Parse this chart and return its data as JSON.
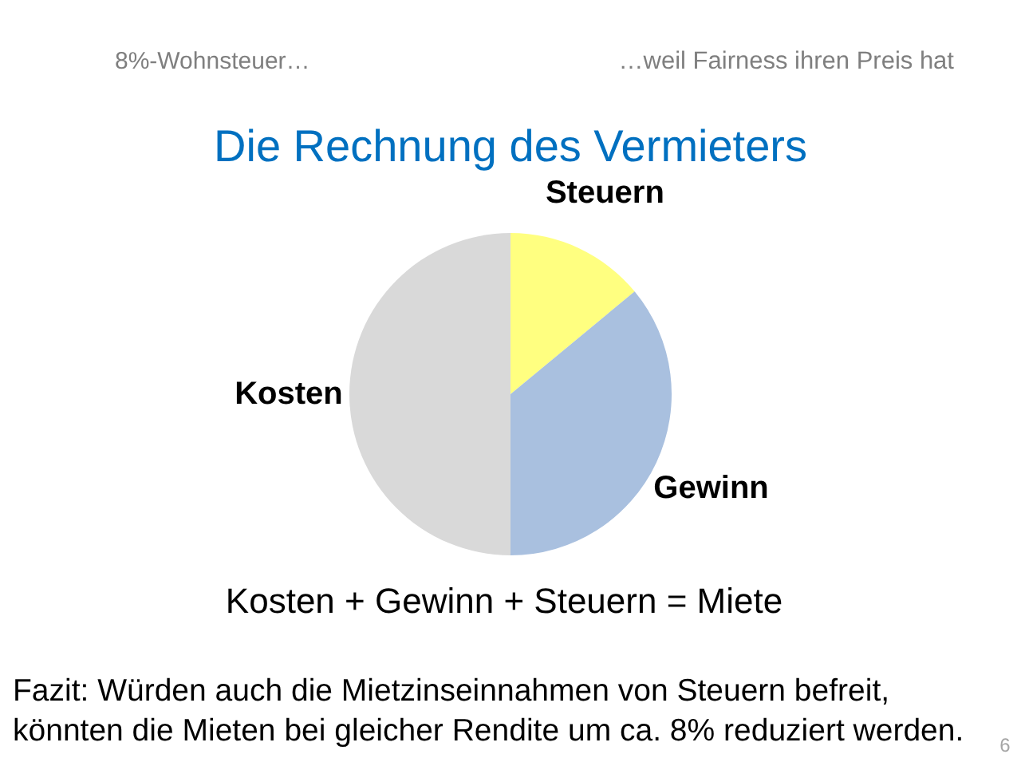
{
  "chart_data": {
    "type": "pie",
    "title": "Die Rechnung des Vermieters",
    "categories": [
      "Steuern",
      "Gewinn",
      "Kosten"
    ],
    "values": [
      14,
      36,
      50
    ],
    "colors": [
      "#ffff80",
      "#a9c0df",
      "#d9d9d9"
    ],
    "annotations": [
      "8%-Wohnsteuer…",
      "…weil Fairness ihren Preis hat",
      "Kosten + Gewinn + Steuern = Miete",
      "Fazit: Würden auch die Mietzinseinnahmen von Steuern befreit,\nkönnten die Mieten bei gleicher Rendite um ca. 8% reduziert werden.",
      "6"
    ]
  }
}
